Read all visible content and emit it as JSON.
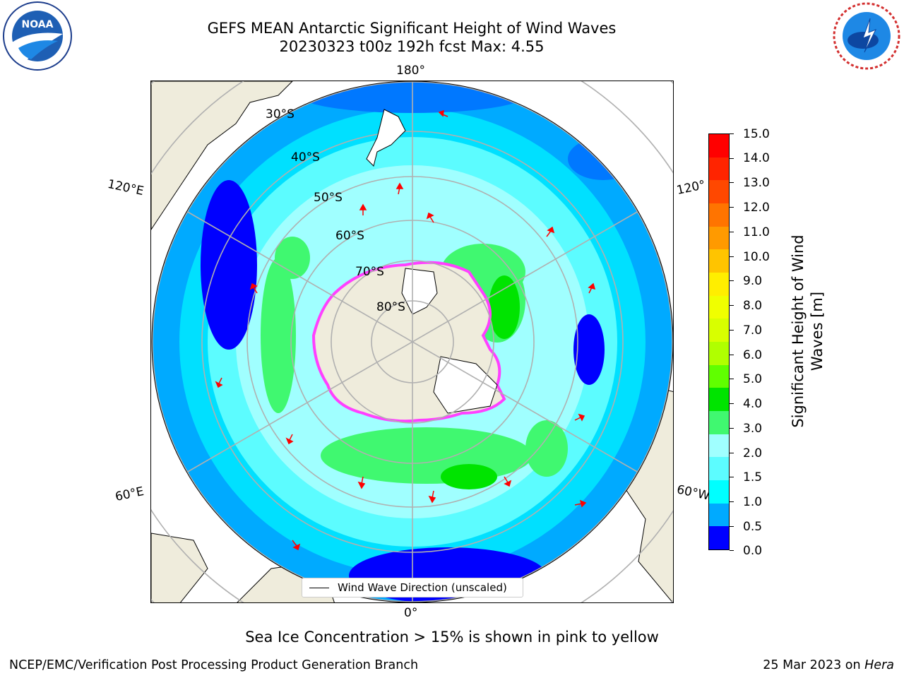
{
  "title": {
    "line1": "GEFS MEAN Antarctic Significant Height of Wind Waves",
    "line2": "20230323 t00z 192h fcst   Max: 4.55"
  },
  "map": {
    "longitude_labels": {
      "top": "180°",
      "bottom": "0°",
      "left_upper": "120°E",
      "left_lower": "60°E",
      "right_upper": "120°",
      "right_lower": "60°W"
    },
    "latitude_labels": [
      "30°S",
      "40°S",
      "50°S",
      "60°S",
      "70°S",
      "80°S"
    ],
    "legend": "Wind Wave Direction (unscaled)",
    "colors": {
      "land": "#efecdc",
      "ice": "#ffffff",
      "grid": "#b0b0b0",
      "arrow": "#ff0000"
    }
  },
  "colorbar": {
    "title": "Significant Height of Wind Waves [m]",
    "title_line1": "Significant Height of Wind",
    "title_line2": "Waves [m]",
    "ticks": [
      "15.0",
      "14.0",
      "13.0",
      "12.0",
      "11.0",
      "10.0",
      "9.0",
      "8.0",
      "7.0",
      "6.0",
      "5.0",
      "4.0",
      "3.0",
      "2.0",
      "1.5",
      "1.0",
      "0.5",
      "0.0"
    ],
    "colors_top_to_bottom": [
      "#ff0000",
      "#ff2400",
      "#ff4800",
      "#ff6c00",
      "#ff9000",
      "#ffb400",
      "#ffe000",
      "#fcff00",
      "#e6ff00",
      "#c8ff00",
      "#7cff00",
      "#00e400",
      "#40f870",
      "#a0ffff",
      "#5cfcff",
      "#00ffff",
      "#00aaff",
      "#0078ff",
      "#0000ff"
    ]
  },
  "footer": {
    "note": "Sea Ice Concentration > 15% is shown in pink to yellow",
    "left": "NCEP/EMC/Verification Post Processing Product Generation Branch",
    "right_date": "25 Mar 2023 on ",
    "right_machine": "Hera"
  },
  "logos": {
    "left": "NOAA",
    "right": "NATIONAL WEATHER SERVICE"
  }
}
